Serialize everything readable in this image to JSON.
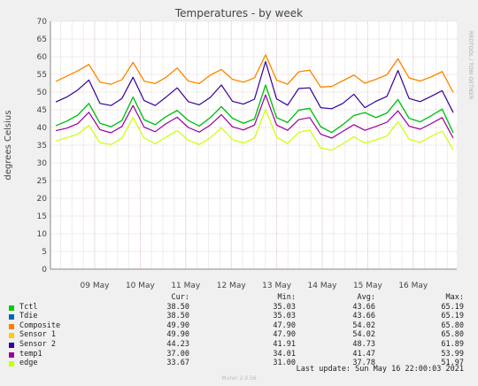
{
  "chart_data": {
    "type": "line",
    "title": "Temperatures - by week",
    "ylabel": "degrees Celsius",
    "ylim": [
      0,
      70
    ],
    "yticks": [
      0,
      5,
      10,
      15,
      20,
      25,
      30,
      35,
      40,
      45,
      50,
      55,
      60,
      65,
      70
    ],
    "xticks": [
      "09 May",
      "10 May",
      "11 May",
      "12 May",
      "13 May",
      "14 May",
      "15 May",
      "16 May"
    ],
    "grid": true,
    "side_text": "RRDTOOL / TOBI OETIKER",
    "series": [
      {
        "name": "Tctl",
        "color": "#00cc00",
        "values": [
          40.5,
          41.8,
          43.5,
          46.8,
          41.2,
          40.2,
          42,
          48.6,
          42.2,
          40.8,
          43.1,
          44.8,
          42,
          40.4,
          42.8,
          45.9,
          42.6,
          41.2,
          42.4,
          52,
          42.8,
          41.4,
          44.9,
          45.4,
          40.2,
          38.6,
          40.8,
          43.4,
          44.2,
          42.8,
          44.1,
          47.9,
          42.6,
          41.6,
          43.3,
          45.2,
          38.5
        ]
      },
      {
        "name": "Tdie",
        "color": "#0066b3",
        "values": [
          40.5,
          41.8,
          43.5,
          46.8,
          41.2,
          40.2,
          42,
          48.6,
          42.2,
          40.8,
          43.1,
          44.8,
          42,
          40.4,
          42.8,
          45.9,
          42.6,
          41.2,
          42.4,
          52,
          42.8,
          41.4,
          44.9,
          45.4,
          40.2,
          38.6,
          40.8,
          43.4,
          44.2,
          42.8,
          44.1,
          47.9,
          42.6,
          41.6,
          43.3,
          45.2,
          38.5
        ]
      },
      {
        "name": "Composite",
        "color": "#ff8000",
        "values": [
          53,
          54.5,
          56,
          57.8,
          52.8,
          52.2,
          53.5,
          58.4,
          53.1,
          52.4,
          54.2,
          56.8,
          53.1,
          52.4,
          54.8,
          56.4,
          53.6,
          52.8,
          54,
          60.5,
          53.4,
          52.2,
          55.7,
          56.2,
          51.4,
          51.6,
          53.2,
          54.8,
          52.5,
          53.6,
          54.9,
          59.4,
          54,
          53.1,
          54.3,
          55.8,
          49.9
        ]
      },
      {
        "name": "Sensor 1",
        "color": "#ffcc00",
        "values": [
          53,
          54.5,
          56,
          57.8,
          52.8,
          52.2,
          53.5,
          58.4,
          53.1,
          52.4,
          54.2,
          56.8,
          53.1,
          52.4,
          54.8,
          56.4,
          53.6,
          52.8,
          54,
          60.5,
          53.4,
          52.2,
          55.7,
          56.2,
          51.4,
          51.6,
          53.2,
          54.8,
          52.5,
          53.6,
          54.9,
          59.4,
          54,
          53.1,
          54.3,
          55.8,
          49.9
        ]
      },
      {
        "name": "Sensor 2",
        "color": "#330099",
        "values": [
          47.2,
          48.6,
          50.6,
          53.4,
          46.8,
          46.2,
          48.2,
          54.2,
          47.6,
          46.2,
          48.6,
          51.2,
          47.3,
          46.4,
          48.5,
          52,
          47.4,
          46.6,
          48,
          58.6,
          48.1,
          46.3,
          51,
          51.2,
          45.6,
          45.3,
          46.8,
          49.4,
          45.6,
          47.4,
          48.8,
          56.1,
          48.2,
          47.3,
          48.8,
          50.4,
          44.2
        ]
      },
      {
        "name": "temp1",
        "color": "#990099",
        "values": [
          39.1,
          39.8,
          41.1,
          44.3,
          39.4,
          38.5,
          40.3,
          46.2,
          40.1,
          38.8,
          41.1,
          42.9,
          40,
          38.7,
          40.7,
          43.6,
          40.2,
          39.3,
          40.7,
          49.2,
          40.7,
          39.2,
          42.2,
          42.8,
          38.1,
          37,
          38.9,
          40.8,
          39.2,
          40.3,
          41.5,
          44.7,
          40.4,
          39.5,
          41.1,
          42.8,
          37
        ]
      },
      {
        "name": "edge",
        "color": "#ccff00",
        "values": [
          36.2,
          37.1,
          38.1,
          40.6,
          35.7,
          35.2,
          37,
          42.8,
          37,
          35.4,
          37.3,
          39.1,
          36.4,
          35.2,
          37.1,
          39.9,
          36.6,
          35.6,
          37,
          45.1,
          37.3,
          35.5,
          38.6,
          39.3,
          34.2,
          33.6,
          35.4,
          37.4,
          35.6,
          36.5,
          37.6,
          41.6,
          36.7,
          35.8,
          37.5,
          39,
          33.7
        ]
      }
    ]
  },
  "legend": {
    "header": {
      "cur": "Cur:",
      "min": "Min:",
      "avg": "Avg:",
      "max": "Max:"
    },
    "rows": [
      {
        "name": "Tctl",
        "color": "#00cc00",
        "cur": "38.50",
        "min": "35.03",
        "avg": "43.66",
        "max": "65.19"
      },
      {
        "name": "Tdie",
        "color": "#0066b3",
        "cur": "38.50",
        "min": "35.03",
        "avg": "43.66",
        "max": "65.19"
      },
      {
        "name": "Composite",
        "color": "#ff8000",
        "cur": "49.90",
        "min": "47.90",
        "avg": "54.02",
        "max": "65.80"
      },
      {
        "name": "Sensor 1",
        "color": "#ffcc00",
        "cur": "49.90",
        "min": "47.90",
        "avg": "54.02",
        "max": "65.80"
      },
      {
        "name": "Sensor 2",
        "color": "#330099",
        "cur": "44.23",
        "min": "41.91",
        "avg": "48.73",
        "max": "61.89"
      },
      {
        "name": "temp1",
        "color": "#990099",
        "cur": "37.00",
        "min": "34.01",
        "avg": "41.47",
        "max": "53.99"
      },
      {
        "name": "edge",
        "color": "#ccff00",
        "cur": "33.67",
        "min": "31.00",
        "avg": "37.78",
        "max": "51.97"
      }
    ]
  },
  "footer": {
    "last_update": "Last update: Sun May 16 22:00:03 2021",
    "version": "Munin 2.0.56"
  }
}
